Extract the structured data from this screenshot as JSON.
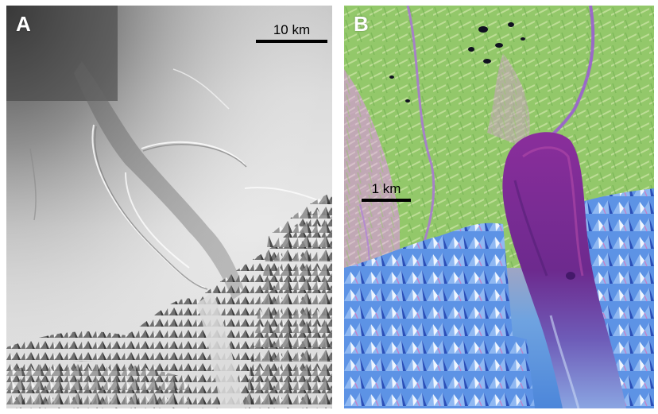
{
  "figure": {
    "panel_a": {
      "label": "A",
      "scale_bar_text": "10 km"
    },
    "panel_b": {
      "label": "B",
      "scale_bar_text": "1 km"
    }
  },
  "colors": {
    "panel_a_base": "#e2e2e2",
    "panel_b_vegetation": "#9bcf6a",
    "panel_b_deposit": "#7a2d8f",
    "panel_b_mountains": "#5a8fe6",
    "panel_b_snow": "#dfeefc"
  }
}
